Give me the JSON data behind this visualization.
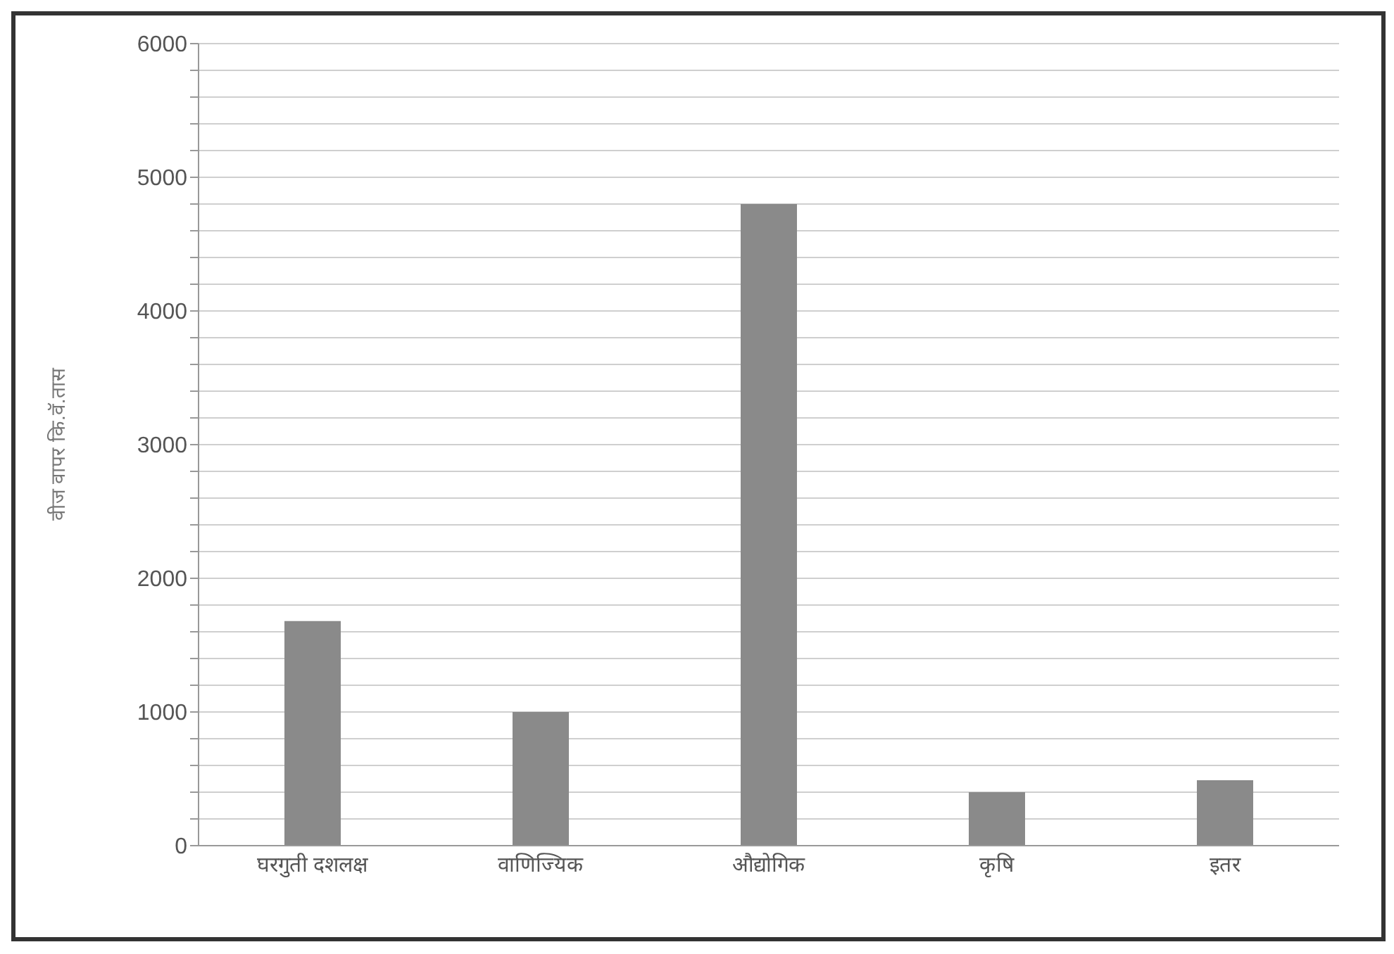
{
  "chart_data": {
    "type": "bar",
    "ylabel": "वीज वापर कि.वॅ.तास",
    "categories": [
      "घरगुती  दशलक्ष",
      "वाणिज्यिक",
      "औद्योगिक",
      "कृषि",
      "इतर"
    ],
    "values": [
      1680,
      1000,
      4800,
      400,
      490
    ],
    "color": "#8a8a8a",
    "ylim": [
      0,
      6000
    ],
    "yticks": [
      0,
      {
        "value": 200,
        "label": null
      },
      {
        "value": 400,
        "label": null
      },
      {
        "value": 600,
        "label": null
      },
      {
        "value": 800,
        "label": null
      },
      1000,
      {
        "value": 1200,
        "label": null
      },
      {
        "value": 1400,
        "label": null
      },
      {
        "value": 1600,
        "label": null
      },
      {
        "value": 1800,
        "label": null
      },
      2000,
      {
        "value": 2200,
        "label": null
      },
      {
        "value": 2400,
        "label": null
      },
      {
        "value": 2600,
        "label": null
      },
      {
        "value": 2800,
        "label": null
      },
      3000,
      {
        "value": 3200,
        "label": null
      },
      {
        "value": 3400,
        "label": null
      },
      {
        "value": 3600,
        "label": null
      },
      {
        "value": 3800,
        "label": null
      },
      4000,
      {
        "value": 4200,
        "label": null
      },
      {
        "value": 4400,
        "label": null
      },
      {
        "value": 4600,
        "label": null
      },
      {
        "value": 4800,
        "label": null
      },
      5000,
      {
        "value": 5200,
        "label": null
      },
      {
        "value": 5400,
        "label": null
      },
      {
        "value": 5600,
        "label": null
      },
      {
        "value": 5800,
        "label": null
      },
      6000
    ],
    "grid": "y"
  }
}
